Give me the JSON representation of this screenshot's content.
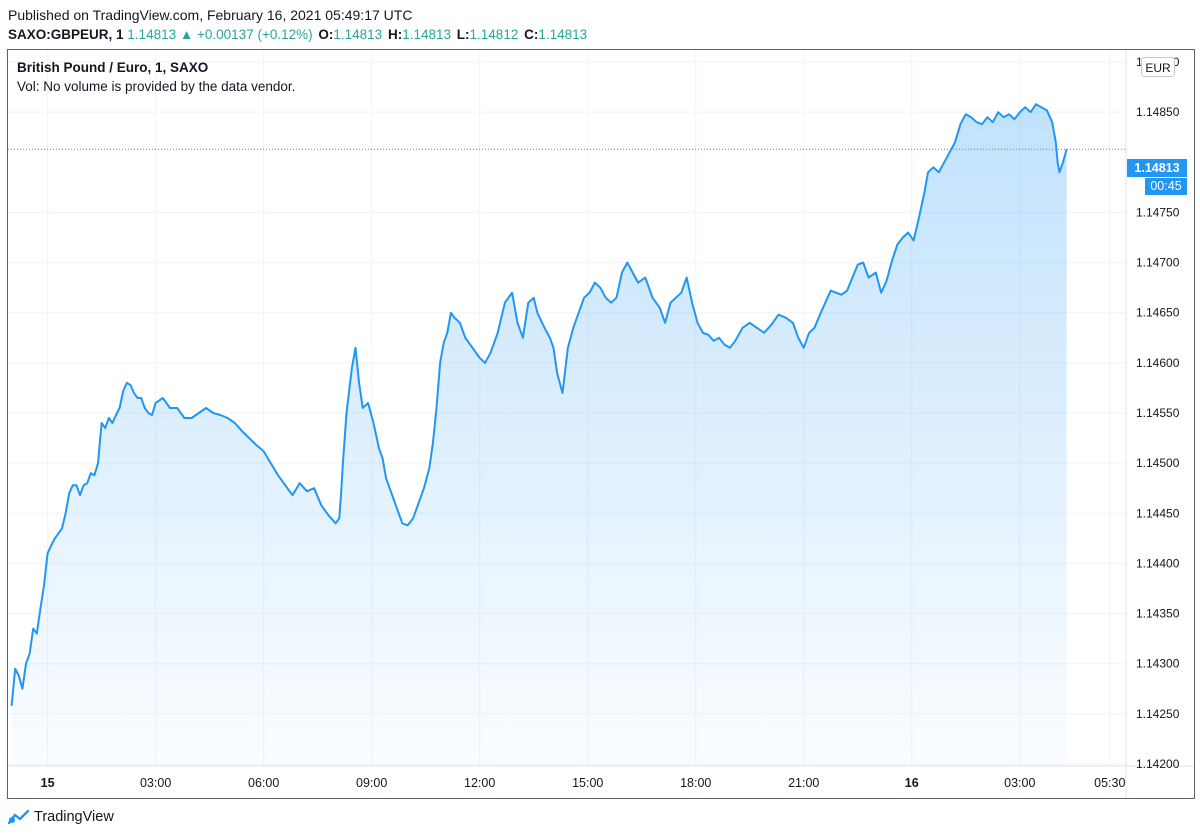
{
  "header": {
    "published": "Published on TradingView.com, February 16, 2021 05:49:17 UTC",
    "symbol": "SAXO:GBPEUR, 1",
    "last": "1.14813",
    "arrow": "▲",
    "change": "+0.00137 (+0.12%)",
    "o_label": "O:",
    "o": "1.14813",
    "h_label": "H:",
    "h": "1.14813",
    "l_label": "L:",
    "l": "1.14812",
    "c_label": "C:",
    "c": "1.14813"
  },
  "legend": {
    "title": "British Pound / Euro, 1, SAXO",
    "volume": "Vol: No volume is provided by the data vendor."
  },
  "currency_badge": "EUR",
  "last_price_tag": "1.14813",
  "countdown_tag": "00:45",
  "brand": "TradingView",
  "colors": {
    "line": "#2196f3",
    "accent_up": "#26a69a",
    "grid": "#f0f3fa"
  },
  "chart_data": {
    "type": "area",
    "title": "British Pound / Euro, 1, SAXO",
    "ylabel": "EUR",
    "ylim": [
      1.14198,
      1.14912
    ],
    "y_ticks": [
      "1.14900",
      "1.14850",
      "1.14750",
      "1.14700",
      "1.14650",
      "1.14600",
      "1.14550",
      "1.14500",
      "1.14450",
      "1.14400",
      "1.14350",
      "1.14300",
      "1.14250",
      "1.14200"
    ],
    "x_ticks": [
      {
        "t": 1.0,
        "label": "15"
      },
      {
        "t": 4.0,
        "label": "03:00"
      },
      {
        "t": 7.0,
        "label": "06:00"
      },
      {
        "t": 10.0,
        "label": "09:00"
      },
      {
        "t": 13.0,
        "label": "12:00"
      },
      {
        "t": 16.0,
        "label": "15:00"
      },
      {
        "t": 19.0,
        "label": "18:00"
      },
      {
        "t": 22.0,
        "label": "21:00"
      },
      {
        "t": 25.0,
        "label": "16"
      },
      {
        "t": 28.0,
        "label": "03:00"
      },
      {
        "t": 30.5,
        "label": "05:30"
      }
    ],
    "series": [
      {
        "name": "GBPEUR",
        "points": [
          [
            0.0,
            1.14258
          ],
          [
            0.1,
            1.14295
          ],
          [
            0.2,
            1.14288
          ],
          [
            0.3,
            1.14275
          ],
          [
            0.4,
            1.143
          ],
          [
            0.5,
            1.1431
          ],
          [
            0.6,
            1.14335
          ],
          [
            0.7,
            1.1433
          ],
          [
            0.8,
            1.14355
          ],
          [
            0.9,
            1.14378
          ],
          [
            1.0,
            1.1441
          ],
          [
            1.1,
            1.14418
          ],
          [
            1.2,
            1.14425
          ],
          [
            1.3,
            1.1443
          ],
          [
            1.4,
            1.14435
          ],
          [
            1.5,
            1.1445
          ],
          [
            1.6,
            1.1447
          ],
          [
            1.7,
            1.14478
          ],
          [
            1.8,
            1.14478
          ],
          [
            1.9,
            1.14468
          ],
          [
            2.0,
            1.14478
          ],
          [
            2.1,
            1.1448
          ],
          [
            2.2,
            1.1449
          ],
          [
            2.3,
            1.14488
          ],
          [
            2.4,
            1.145
          ],
          [
            2.5,
            1.1454
          ],
          [
            2.6,
            1.14535
          ],
          [
            2.7,
            1.14545
          ],
          [
            2.8,
            1.1454
          ],
          [
            2.9,
            1.14548
          ],
          [
            3.0,
            1.14555
          ],
          [
            3.1,
            1.14572
          ],
          [
            3.2,
            1.1458
          ],
          [
            3.3,
            1.14578
          ],
          [
            3.4,
            1.1457
          ],
          [
            3.5,
            1.14565
          ],
          [
            3.6,
            1.14565
          ],
          [
            3.7,
            1.14555
          ],
          [
            3.8,
            1.1455
          ],
          [
            3.9,
            1.14548
          ],
          [
            4.0,
            1.1456
          ],
          [
            4.2,
            1.14565
          ],
          [
            4.4,
            1.14555
          ],
          [
            4.6,
            1.14555
          ],
          [
            4.8,
            1.14545
          ],
          [
            5.0,
            1.14545
          ],
          [
            5.2,
            1.1455
          ],
          [
            5.4,
            1.14555
          ],
          [
            5.6,
            1.1455
          ],
          [
            5.8,
            1.14548
          ],
          [
            6.0,
            1.14545
          ],
          [
            6.2,
            1.1454
          ],
          [
            6.4,
            1.14532
          ],
          [
            6.6,
            1.14525
          ],
          [
            6.8,
            1.14518
          ],
          [
            7.0,
            1.14512
          ],
          [
            7.2,
            1.145
          ],
          [
            7.4,
            1.14488
          ],
          [
            7.6,
            1.14478
          ],
          [
            7.8,
            1.14468
          ],
          [
            8.0,
            1.1448
          ],
          [
            8.2,
            1.14472
          ],
          [
            8.4,
            1.14475
          ],
          [
            8.6,
            1.14458
          ],
          [
            8.8,
            1.14448
          ],
          [
            9.0,
            1.1444
          ],
          [
            9.1,
            1.14445
          ],
          [
            9.15,
            1.1447
          ],
          [
            9.2,
            1.145
          ],
          [
            9.3,
            1.1455
          ],
          [
            9.45,
            1.14595
          ],
          [
            9.55,
            1.14615
          ],
          [
            9.65,
            1.1458
          ],
          [
            9.75,
            1.14555
          ],
          [
            9.9,
            1.1456
          ],
          [
            10.05,
            1.1454
          ],
          [
            10.2,
            1.14515
          ],
          [
            10.3,
            1.14505
          ],
          [
            10.4,
            1.14485
          ],
          [
            10.5,
            1.14475
          ],
          [
            10.6,
            1.14465
          ],
          [
            10.7,
            1.14455
          ],
          [
            10.85,
            1.1444
          ],
          [
            11.0,
            1.14438
          ],
          [
            11.15,
            1.14445
          ],
          [
            11.3,
            1.1446
          ],
          [
            11.45,
            1.14475
          ],
          [
            11.6,
            1.14495
          ],
          [
            11.7,
            1.1452
          ],
          [
            11.8,
            1.14555
          ],
          [
            11.9,
            1.146
          ],
          [
            12.0,
            1.1462
          ],
          [
            12.1,
            1.1463
          ],
          [
            12.2,
            1.1465
          ],
          [
            12.3,
            1.14645
          ],
          [
            12.45,
            1.1464
          ],
          [
            12.6,
            1.14625
          ],
          [
            12.8,
            1.14615
          ],
          [
            13.0,
            1.14605
          ],
          [
            13.15,
            1.146
          ],
          [
            13.3,
            1.1461
          ],
          [
            13.5,
            1.1463
          ],
          [
            13.7,
            1.1466
          ],
          [
            13.9,
            1.1467
          ],
          [
            14.05,
            1.1464
          ],
          [
            14.2,
            1.14625
          ],
          [
            14.35,
            1.1466
          ],
          [
            14.5,
            1.14665
          ],
          [
            14.6,
            1.1465
          ],
          [
            14.8,
            1.14635
          ],
          [
            14.95,
            1.14625
          ],
          [
            15.05,
            1.14615
          ],
          [
            15.15,
            1.1459
          ],
          [
            15.3,
            1.1457
          ],
          [
            15.45,
            1.14615
          ],
          [
            15.6,
            1.14635
          ],
          [
            15.75,
            1.1465
          ],
          [
            15.9,
            1.14665
          ],
          [
            16.05,
            1.1467
          ],
          [
            16.2,
            1.1468
          ],
          [
            16.35,
            1.14675
          ],
          [
            16.5,
            1.14665
          ],
          [
            16.65,
            1.1466
          ],
          [
            16.8,
            1.14665
          ],
          [
            16.95,
            1.1469
          ],
          [
            17.1,
            1.147
          ],
          [
            17.25,
            1.1469
          ],
          [
            17.4,
            1.1468
          ],
          [
            17.6,
            1.14685
          ],
          [
            17.8,
            1.14665
          ],
          [
            18.0,
            1.14655
          ],
          [
            18.15,
            1.1464
          ],
          [
            18.3,
            1.1466
          ],
          [
            18.45,
            1.14665
          ],
          [
            18.6,
            1.1467
          ],
          [
            18.75,
            1.14685
          ],
          [
            18.9,
            1.1466
          ],
          [
            19.05,
            1.1464
          ],
          [
            19.2,
            1.1463
          ],
          [
            19.35,
            1.14628
          ],
          [
            19.5,
            1.14622
          ],
          [
            19.65,
            1.14625
          ],
          [
            19.8,
            1.14618
          ],
          [
            19.95,
            1.14615
          ],
          [
            20.1,
            1.14622
          ],
          [
            20.3,
            1.14635
          ],
          [
            20.5,
            1.1464
          ],
          [
            20.7,
            1.14635
          ],
          [
            20.9,
            1.1463
          ],
          [
            21.1,
            1.14638
          ],
          [
            21.3,
            1.14648
          ],
          [
            21.5,
            1.14645
          ],
          [
            21.7,
            1.1464
          ],
          [
            21.85,
            1.14625
          ],
          [
            22.0,
            1.14615
          ],
          [
            22.15,
            1.1463
          ],
          [
            22.3,
            1.14635
          ],
          [
            22.45,
            1.14648
          ],
          [
            22.6,
            1.1466
          ],
          [
            22.75,
            1.14672
          ],
          [
            22.9,
            1.1467
          ],
          [
            23.05,
            1.14668
          ],
          [
            23.2,
            1.14672
          ],
          [
            23.35,
            1.14685
          ],
          [
            23.5,
            1.14698
          ],
          [
            23.65,
            1.147
          ],
          [
            23.8,
            1.14685
          ],
          [
            24.0,
            1.1469
          ],
          [
            24.15,
            1.1467
          ],
          [
            24.3,
            1.14682
          ],
          [
            24.45,
            1.14702
          ],
          [
            24.6,
            1.14718
          ],
          [
            24.75,
            1.14725
          ],
          [
            24.9,
            1.1473
          ],
          [
            25.05,
            1.14722
          ],
          [
            25.2,
            1.14745
          ],
          [
            25.35,
            1.1477
          ],
          [
            25.45,
            1.1479
          ],
          [
            25.6,
            1.14795
          ],
          [
            25.75,
            1.1479
          ],
          [
            25.9,
            1.148
          ],
          [
            26.05,
            1.1481
          ],
          [
            26.2,
            1.1482
          ],
          [
            26.35,
            1.14838
          ],
          [
            26.5,
            1.14848
          ],
          [
            26.65,
            1.14845
          ],
          [
            26.8,
            1.1484
          ],
          [
            26.95,
            1.14838
          ],
          [
            27.1,
            1.14845
          ],
          [
            27.25,
            1.1484
          ],
          [
            27.4,
            1.1485
          ],
          [
            27.55,
            1.14845
          ],
          [
            27.7,
            1.14848
          ],
          [
            27.85,
            1.14843
          ],
          [
            28.0,
            1.1485
          ],
          [
            28.15,
            1.14855
          ],
          [
            28.3,
            1.1485
          ],
          [
            28.45,
            1.14858
          ],
          [
            28.6,
            1.14855
          ],
          [
            28.75,
            1.14852
          ],
          [
            28.9,
            1.1484
          ],
          [
            29.0,
            1.1482
          ],
          [
            29.05,
            1.148
          ],
          [
            29.1,
            1.1479
          ],
          [
            29.2,
            1.148
          ],
          [
            29.3,
            1.14813
          ]
        ]
      }
    ],
    "last_value": 1.14813
  }
}
